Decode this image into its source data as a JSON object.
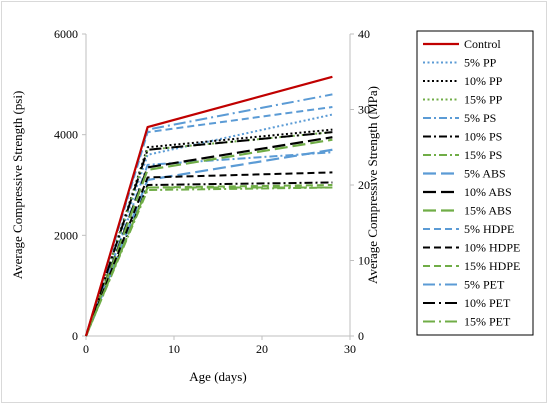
{
  "chart_data": {
    "type": "line",
    "title": "",
    "xlabel": "Age (days)",
    "ylabel": "Average Compressive Strength (psi)",
    "y2label": "Average Compressive Strength (MPa)",
    "xlim": [
      0,
      30
    ],
    "ylim": [
      0,
      6000
    ],
    "y2lim": [
      0,
      40
    ],
    "x_ticks": [
      0,
      10,
      20,
      30
    ],
    "y_ticks": [
      0,
      2000,
      4000,
      6000
    ],
    "y2_ticks": [
      0,
      10,
      20,
      30,
      40
    ],
    "x": [
      0,
      7,
      28
    ],
    "grid": false,
    "legend_position": "right",
    "series": [
      {
        "name": "Control",
        "color": "#c00000",
        "dash": "solid",
        "width": 2.2,
        "values": [
          0,
          4150,
          5150
        ]
      },
      {
        "name": "5% PP",
        "color": "#5b9bd5",
        "dash": "dot",
        "width": 2,
        "values": [
          0,
          3600,
          4400
        ]
      },
      {
        "name": "10% PP",
        "color": "#000000",
        "dash": "dot",
        "width": 2,
        "values": [
          0,
          3750,
          4100
        ]
      },
      {
        "name": "15% PP",
        "color": "#70ad47",
        "dash": "dot",
        "width": 2,
        "values": [
          0,
          3700,
          4050
        ]
      },
      {
        "name": "5% PS",
        "color": "#5b9bd5",
        "dash": "dashdot",
        "width": 2,
        "values": [
          0,
          3400,
          3650
        ]
      },
      {
        "name": "10% PS",
        "color": "#000000",
        "dash": "dashdot",
        "width": 2,
        "values": [
          0,
          3000,
          3050
        ]
      },
      {
        "name": "15% PS",
        "color": "#70ad47",
        "dash": "dashdot",
        "width": 2,
        "values": [
          0,
          2900,
          2950
        ]
      },
      {
        "name": "5% ABS",
        "color": "#5b9bd5",
        "dash": "longdash",
        "width": 2.2,
        "values": [
          0,
          3100,
          3700
        ]
      },
      {
        "name": "10% ABS",
        "color": "#000000",
        "dash": "longdash",
        "width": 2.2,
        "values": [
          0,
          3350,
          3950
        ]
      },
      {
        "name": "15% ABS",
        "color": "#70ad47",
        "dash": "longdash",
        "width": 2.2,
        "values": [
          0,
          3300,
          3900
        ]
      },
      {
        "name": "5% HDPE",
        "color": "#5b9bd5",
        "dash": "dash",
        "width": 2,
        "values": [
          0,
          4050,
          4550
        ]
      },
      {
        "name": "10% HDPE",
        "color": "#000000",
        "dash": "dash",
        "width": 2,
        "values": [
          0,
          3150,
          3250
        ]
      },
      {
        "name": "15% HDPE",
        "color": "#70ad47",
        "dash": "dash",
        "width": 2,
        "values": [
          0,
          2950,
          3000
        ]
      },
      {
        "name": "5% PET",
        "color": "#5b9bd5",
        "dash": "longdashdot",
        "width": 2,
        "values": [
          0,
          4100,
          4800
        ]
      },
      {
        "name": "10% PET",
        "color": "#000000",
        "dash": "longdashdot",
        "width": 2,
        "values": [
          0,
          3700,
          4050
        ]
      },
      {
        "name": "15% PET",
        "color": "#70ad47",
        "dash": "longdashdot",
        "width": 2,
        "values": [
          0,
          2950,
          2950
        ]
      }
    ]
  }
}
